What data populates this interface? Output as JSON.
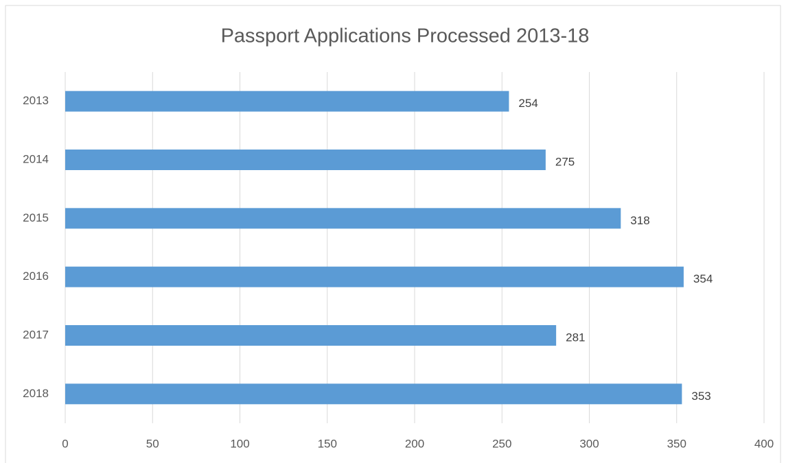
{
  "chart_data": {
    "type": "bar",
    "orientation": "horizontal",
    "title": "Passport Applications Processed 2013-18",
    "categories": [
      "2013",
      "2014",
      "2015",
      "2016",
      "2017",
      "2018"
    ],
    "values": [
      254,
      275,
      318,
      354,
      281,
      353
    ],
    "color": "#5b9bd5",
    "xlim": [
      0,
      400
    ],
    "xticks": [
      0,
      50,
      100,
      150,
      200,
      250,
      300,
      350,
      400
    ],
    "grid": true
  }
}
